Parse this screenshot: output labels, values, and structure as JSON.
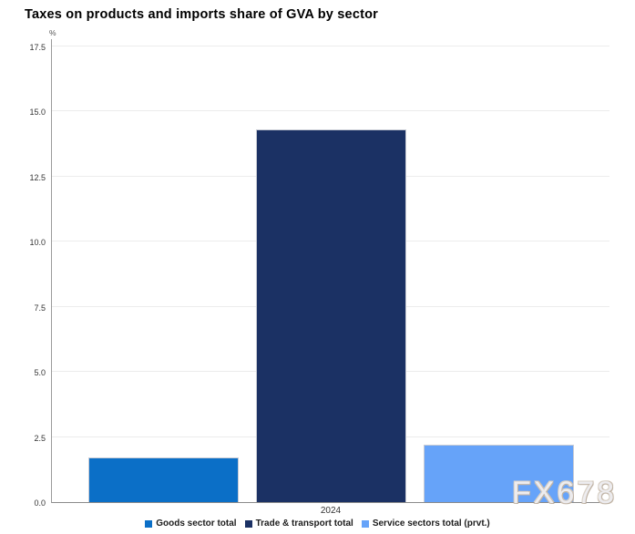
{
  "chart": {
    "title": "Taxes on products and imports share of GVA by sector"
  },
  "watermark": {
    "text": "FX678"
  },
  "chart_data": {
    "type": "bar",
    "title": "Taxes on products and imports share of GVA by sector",
    "unit": "%",
    "categories": [
      "2024"
    ],
    "series": [
      {
        "name": "Goods sector total",
        "values": [
          1.7
        ],
        "color": "#0b6fc7"
      },
      {
        "name": "Trade & transport total",
        "values": [
          14.3
        ],
        "color": "#1b3164"
      },
      {
        "name": "Service sectors total (prvt.)",
        "values": [
          2.2
        ],
        "color": "#66a3f9"
      }
    ],
    "xlabel": "",
    "ylabel": "%",
    "ylim": [
      0,
      17.5
    ],
    "yticks": [
      0.0,
      2.5,
      5.0,
      7.5,
      10.0,
      12.5,
      15.0,
      17.5
    ],
    "grid": true,
    "legend_position": "bottom"
  }
}
